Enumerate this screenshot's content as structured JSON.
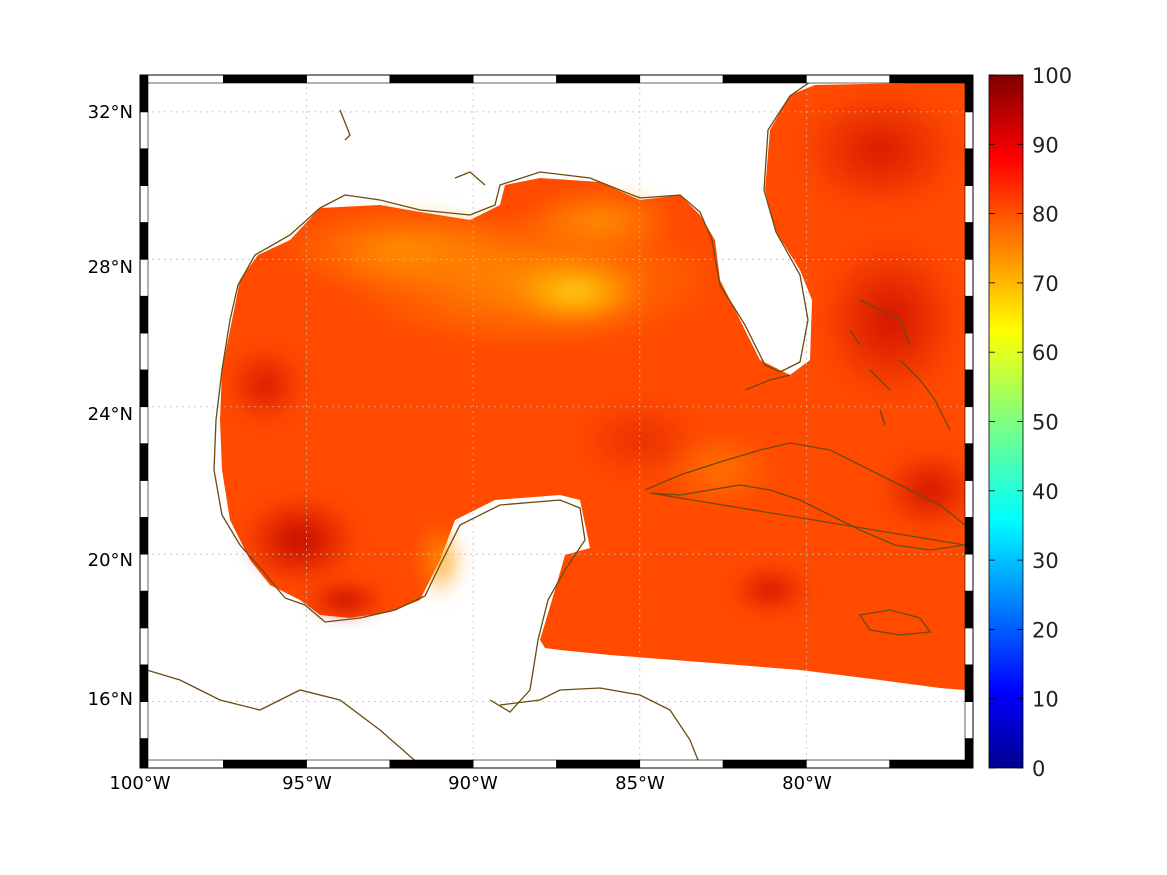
{
  "map": {
    "lon_range": [
      -100,
      -75
    ],
    "lat_range": [
      14.2,
      33
    ],
    "lon_labels": [
      "100°W",
      "95°W",
      "90°W",
      "85°W",
      "80°W"
    ],
    "lat_labels": [
      "32°N",
      "28°N",
      "24°N",
      "20°N",
      "16°N"
    ],
    "grid": true,
    "coastline_color": "#6b4a12"
  },
  "colorbar": {
    "min": 0,
    "max": 100,
    "tick_labels": [
      "100",
      "90",
      "80",
      "70",
      "60",
      "50",
      "40",
      "30",
      "20",
      "10",
      "0"
    ],
    "colormap": "jet"
  },
  "field": {
    "typical_value_range": [
      70,
      98
    ]
  }
}
